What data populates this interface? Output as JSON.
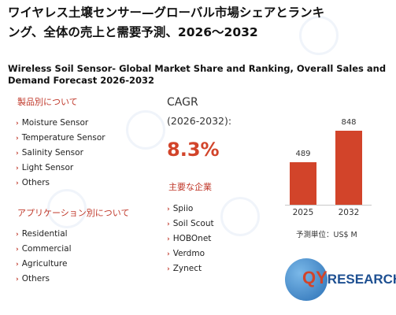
{
  "title_jp_line1": "ワイヤレス土壌センサー—グローバル市場シェアとランキ",
  "title_jp_line2": "ング、全体の売上と需要予測、2026～2032",
  "title_en": "Wireless Soil Sensor- Global Market Share and Ranking, Overall Sales and Demand Forecast 2026-2032",
  "products": {
    "heading": "製品別について",
    "items": [
      "Moisture Sensor",
      "Temperature Sensor",
      "Salinity Sensor",
      "Light Sensor",
      "Others"
    ]
  },
  "applications": {
    "heading": "アプリケーション別について",
    "items": [
      "Residential",
      "Commercial",
      "Agriculture",
      "Others"
    ]
  },
  "cagr": {
    "label": "CAGR",
    "period": "(2026-2032):",
    "value": "8.3%"
  },
  "companies": {
    "heading": "主要な企業",
    "items": [
      "Spiio",
      "Soil Scout",
      "HOBOnet",
      "Verdmo",
      "Zynect"
    ]
  },
  "chart_data": {
    "type": "bar",
    "categories": [
      "2025",
      "2032"
    ],
    "values": [
      489,
      848
    ],
    "value_labels": [
      "489",
      "848"
    ],
    "unit_label": "予測単位：US$ M",
    "ylim": [
      0,
      900
    ],
    "color": "#d2442a"
  },
  "logo": {
    "text_q": "QY",
    "text_rest": "RESEARCH"
  }
}
